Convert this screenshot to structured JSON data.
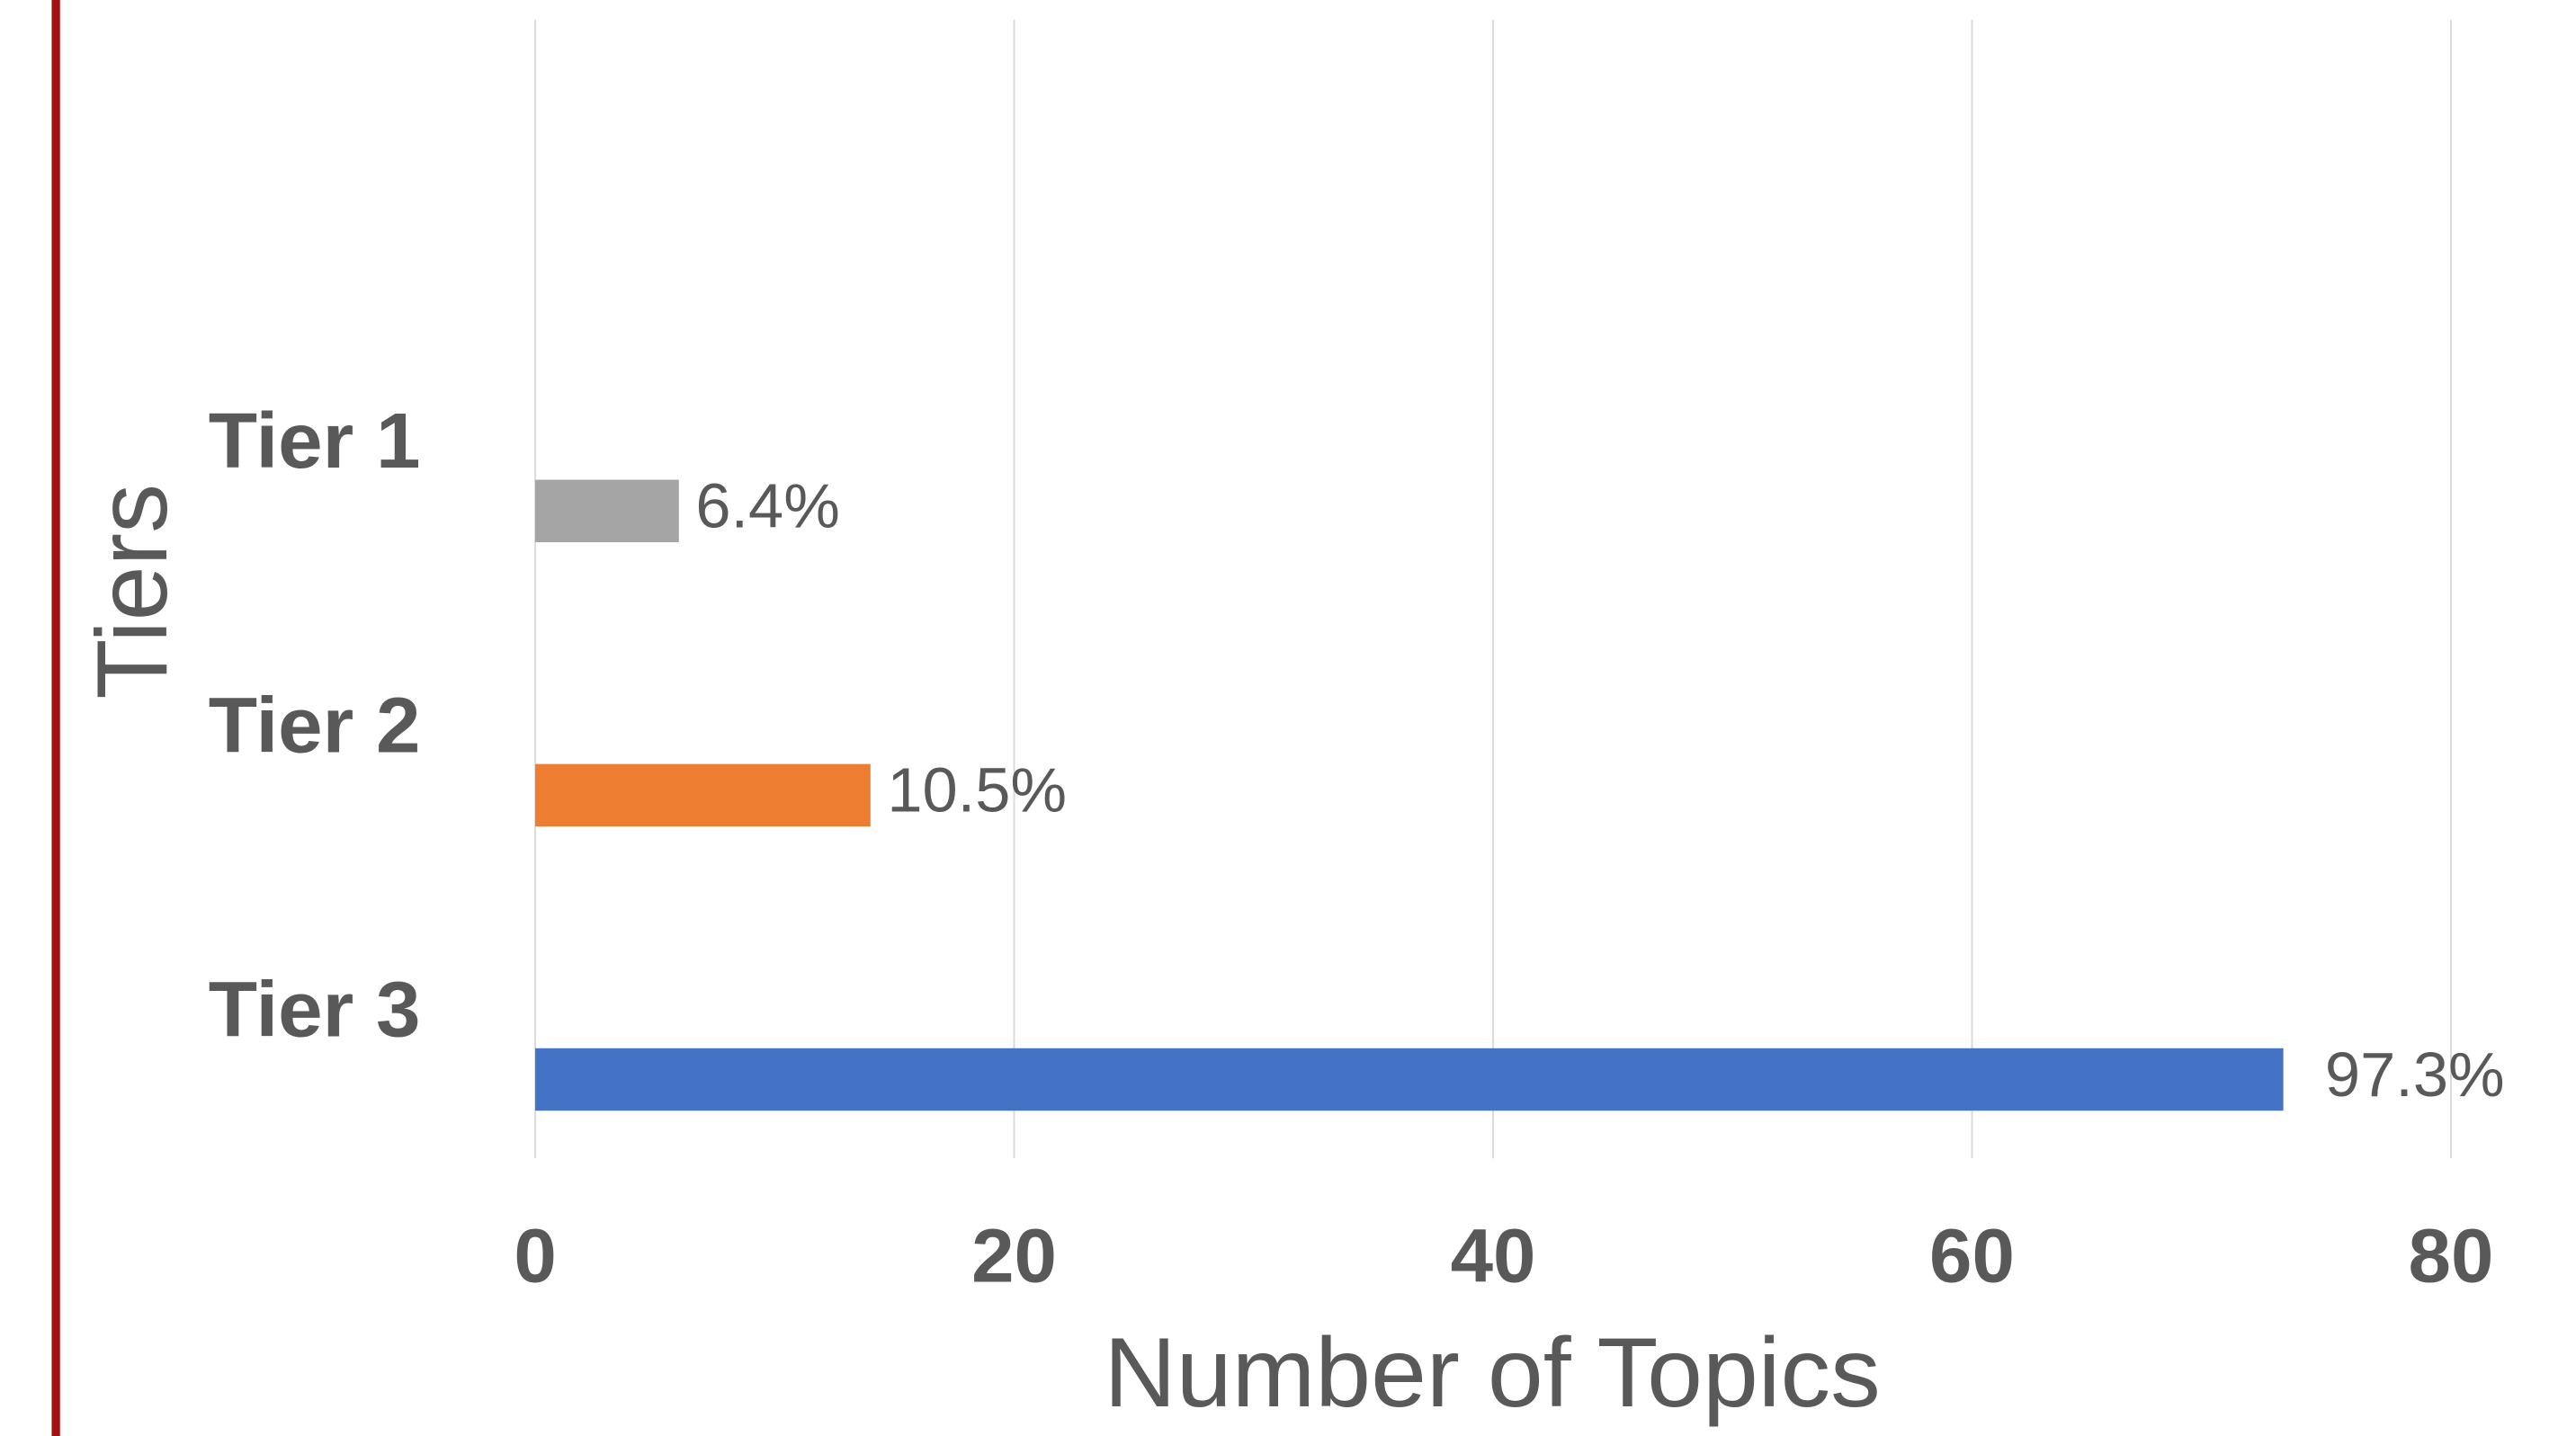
{
  "chart_data": {
    "type": "hbar",
    "categories": [
      "Tier 1",
      "Tier 2",
      "Tier 3"
    ],
    "values": [
      6,
      14,
      73
    ],
    "annotations": [
      "6.4%",
      "10.5%",
      "97.3%"
    ],
    "colors": [
      "#a5a5a5",
      "#ed7d31",
      "#4472c4"
    ],
    "xlim": [
      0,
      80
    ],
    "xticks": [
      0,
      20,
      40,
      60,
      80
    ],
    "xlabel": "Number of Topics",
    "ylabel": "Tiers",
    "grid": true
  }
}
